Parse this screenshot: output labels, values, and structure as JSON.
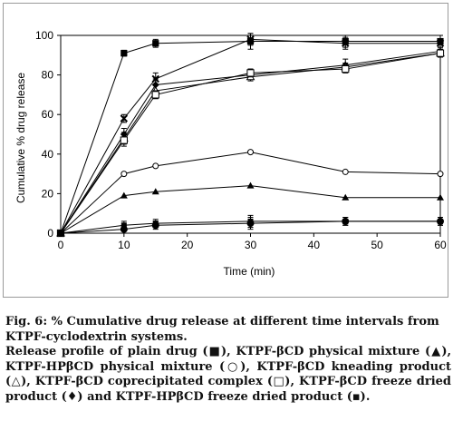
{
  "chart_data": {
    "type": "line",
    "xlabel": "Time (min)",
    "ylabel": "Cumulative % drug release",
    "xlim": [
      0,
      60
    ],
    "ylim": [
      0,
      100
    ],
    "xticks": [
      "0",
      "10",
      "20",
      "30",
      "40",
      "50",
      "60"
    ],
    "yticks": [
      "0",
      "20",
      "40",
      "60",
      "80",
      "100"
    ],
    "grid": false,
    "x": [
      0,
      10,
      15,
      30,
      45,
      60
    ],
    "series": [
      {
        "marker": "square",
        "values": [
          0,
          91,
          96,
          97,
          97,
          97
        ],
        "errors": [
          0,
          1.5,
          2,
          4,
          3,
          3
        ]
      },
      {
        "marker": "cross",
        "values": [
          0,
          58,
          78,
          98,
          96,
          96
        ],
        "errors": [
          0,
          2,
          3,
          3,
          3,
          2
        ]
      },
      {
        "marker": "diamond",
        "values": [
          0,
          50,
          75,
          80,
          85,
          92
        ],
        "errors": [
          0,
          3,
          3,
          2,
          3,
          2
        ]
      },
      {
        "marker": "triangle-open",
        "values": [
          0,
          48,
          72,
          79,
          84,
          91
        ],
        "errors": [
          0,
          3,
          3,
          2,
          2,
          2
        ]
      },
      {
        "marker": "square-open",
        "values": [
          0,
          47,
          70,
          81,
          83,
          91
        ],
        "errors": [
          0,
          3,
          2,
          2,
          2,
          2
        ]
      },
      {
        "marker": "circle-open",
        "values": [
          0,
          30,
          34,
          41,
          31,
          30
        ],
        "errors": [
          0,
          0,
          0,
          0,
          0,
          0
        ]
      },
      {
        "marker": "triangle",
        "values": [
          0,
          19,
          21,
          24,
          18,
          18
        ],
        "errors": [
          0,
          0,
          0,
          0,
          0,
          0
        ]
      },
      {
        "marker": "square-filled-small",
        "values": [
          0,
          4,
          5,
          6,
          6,
          6
        ],
        "errors": [
          0,
          2,
          2,
          3,
          2,
          2
        ]
      },
      {
        "marker": "circle",
        "values": [
          0,
          2,
          4,
          5,
          6,
          6
        ],
        "errors": [
          0,
          2,
          2,
          3,
          2,
          2
        ]
      }
    ]
  },
  "caption": {
    "title": "Fig. 6: % Cumulative drug release at different time intervals from KTPF-cyclodextrin systems.",
    "body": "Release profile of plain drug (■), KTPF-βCD physical mixture (▲), KTPF-HPβCD physical mixture (○), KTPF-βCD kneading product (△), KTPF-βCD coprecipitated complex (□), KTPF-βCD freeze dried product (♦) and KTPF-HPβCD freeze dried product (▪)."
  }
}
